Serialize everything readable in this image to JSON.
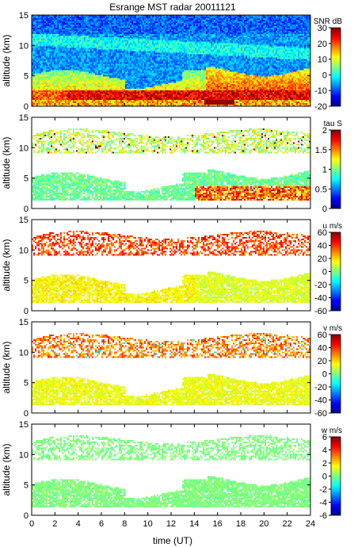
{
  "title": "Esrange MST radar 20011121",
  "xlabel": "time (UT)",
  "colors": {
    "colormap": [
      "#00008f",
      "#0000ff",
      "#0080ff",
      "#00ffff",
      "#80ff80",
      "#ffff00",
      "#ff8000",
      "#ff0000",
      "#800000"
    ]
  },
  "chart_data": [
    {
      "type": "heatmap",
      "panel": 1,
      "ylabel": "altitude (km)",
      "xlim": [
        0,
        24
      ],
      "ylim": [
        0,
        15
      ],
      "xticks": [
        0,
        2,
        4,
        6,
        8,
        10,
        12,
        14,
        16,
        18,
        20,
        22,
        24
      ],
      "yticks": [
        0,
        5,
        10,
        15
      ],
      "colorbar": {
        "label": "SNR dB",
        "range": [
          -20,
          30
        ],
        "ticks": [
          30,
          20,
          10,
          0,
          -10,
          -20
        ]
      },
      "pattern": "snr"
    },
    {
      "type": "heatmap",
      "panel": 2,
      "ylabel": "altitude (km)",
      "xlim": [
        0,
        24
      ],
      "ylim": [
        0,
        15
      ],
      "xticks": [
        0,
        2,
        4,
        6,
        8,
        10,
        12,
        14,
        16,
        18,
        20,
        22,
        24
      ],
      "yticks": [
        0,
        5,
        10,
        15
      ],
      "colorbar": {
        "label": "tau S",
        "range": [
          0,
          2
        ],
        "ticks": [
          2,
          1.5,
          1,
          0.5,
          0
        ]
      },
      "pattern": "tau"
    },
    {
      "type": "heatmap",
      "panel": 3,
      "ylabel": "altitude (km)",
      "xlim": [
        0,
        24
      ],
      "ylim": [
        0,
        15
      ],
      "xticks": [
        0,
        2,
        4,
        6,
        8,
        10,
        12,
        14,
        16,
        18,
        20,
        22,
        24
      ],
      "yticks": [
        0,
        5,
        10,
        15
      ],
      "colorbar": {
        "label": "u m/s",
        "range": [
          -60,
          60
        ],
        "ticks": [
          60,
          40,
          20,
          0,
          -20,
          -40,
          -60
        ]
      },
      "pattern": "u"
    },
    {
      "type": "heatmap",
      "panel": 4,
      "ylabel": "altitude (km)",
      "xlim": [
        0,
        24
      ],
      "ylim": [
        0,
        15
      ],
      "xticks": [
        0,
        2,
        4,
        6,
        8,
        10,
        12,
        14,
        16,
        18,
        20,
        22,
        24
      ],
      "yticks": [
        0,
        5,
        10,
        15
      ],
      "colorbar": {
        "label": "v m/s",
        "range": [
          -60,
          60
        ],
        "ticks": [
          60,
          40,
          20,
          0,
          -20,
          -40,
          -60
        ]
      },
      "pattern": "v"
    },
    {
      "type": "heatmap",
      "panel": 5,
      "ylabel": "altitude (km)",
      "xlim": [
        0,
        24
      ],
      "ylim": [
        0,
        15
      ],
      "xticks": [
        0,
        2,
        4,
        6,
        8,
        10,
        12,
        14,
        16,
        18,
        20,
        22,
        24
      ],
      "yticks": [
        0,
        5,
        10,
        15
      ],
      "colorbar": {
        "label": "w m/s",
        "range": [
          -6,
          6
        ],
        "ticks": [
          6,
          4,
          2,
          0,
          -2,
          -4,
          -6
        ]
      },
      "pattern": "w"
    }
  ]
}
